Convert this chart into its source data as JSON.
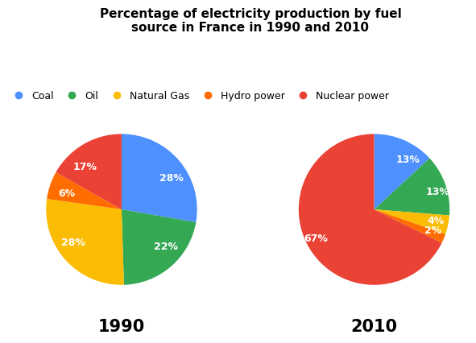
{
  "title": "Percentage of electricity production by fuel\nsource in France in 1990 and 2010",
  "title_fontsize": 11,
  "legend_labels": [
    "Coal",
    "Oil",
    "Natural Gas",
    "Hydro power",
    "Nuclear power"
  ],
  "colors": [
    "#4d90fe",
    "#34a853",
    "#fbbc04",
    "#ff6d00",
    "#ea4335"
  ],
  "year1": "1990",
  "year2": "2010",
  "values_1990": [
    28,
    22,
    28,
    6,
    17
  ],
  "values_2010": [
    13,
    13,
    4,
    2,
    67
  ],
  "labels_1990": [
    "28%",
    "22%",
    "28%",
    "6%",
    "17%"
  ],
  "labels_2010": [
    "13%",
    "13%",
    "4%",
    "2%",
    "67%"
  ],
  "year_fontsize": 15,
  "label_fontsize": 9,
  "legend_fontsize": 9,
  "background_color": "#ffffff"
}
